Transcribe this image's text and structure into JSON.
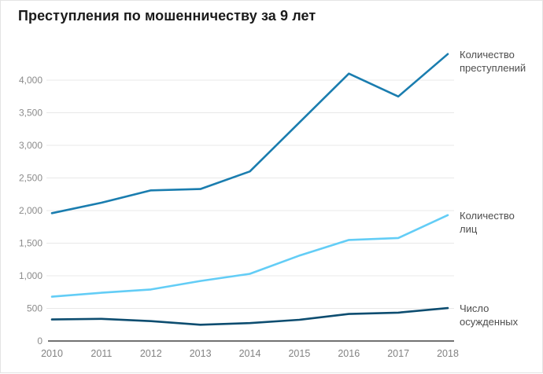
{
  "title": "Преступления по мошенничеству за 9 лет",
  "colors": {
    "series_crimes": "#1a7daf",
    "series_persons": "#63cdf6",
    "series_convicted": "#0d4d70",
    "grid": "#e8e8e8",
    "axis_line": "#434343",
    "tick_text": "#8b8b8b",
    "label_text": "#4d4d4d",
    "title_text": "#1b1b1b"
  },
  "chart_data": {
    "type": "line",
    "title": "Преступления по мошенничеству за 9 лет",
    "x_tick_labels": [
      "2010",
      "2011",
      "2012",
      "2013",
      "2014",
      "2015",
      "2016",
      "2017",
      "2018"
    ],
    "y_tick_labels": [
      "0",
      "500",
      "1,000",
      "1,500",
      "2,000",
      "2,500",
      "3,000",
      "3,500",
      "4,000"
    ],
    "y_ticks": [
      0,
      500,
      1000,
      1500,
      2000,
      2500,
      3000,
      3500,
      4000
    ],
    "ylim": [
      0,
      4470
    ],
    "grid": "horizontal-only",
    "legend_position": "direct-labels-right-of-lines",
    "series": [
      {
        "name": "Количество преступлений",
        "label_lines": [
          "Количество",
          "преступлений"
        ],
        "color": "#1a7daf",
        "stroke_width": 2.6,
        "values": [
          1960,
          2120,
          2310,
          2330,
          2600,
          3350,
          4100,
          3750,
          4400
        ]
      },
      {
        "name": "Количество лиц",
        "label_lines": [
          "Количество",
          "лиц"
        ],
        "color": "#63cdf6",
        "stroke_width": 2.6,
        "values": [
          680,
          740,
          790,
          920,
          1030,
          1310,
          1550,
          1580,
          1930
        ]
      },
      {
        "name": "Число осужденных",
        "label_lines": [
          "Число",
          "осужденных"
        ],
        "color": "#0d4d70",
        "stroke_width": 2.6,
        "values": [
          330,
          340,
          305,
          250,
          275,
          325,
          415,
          435,
          505
        ]
      }
    ]
  }
}
